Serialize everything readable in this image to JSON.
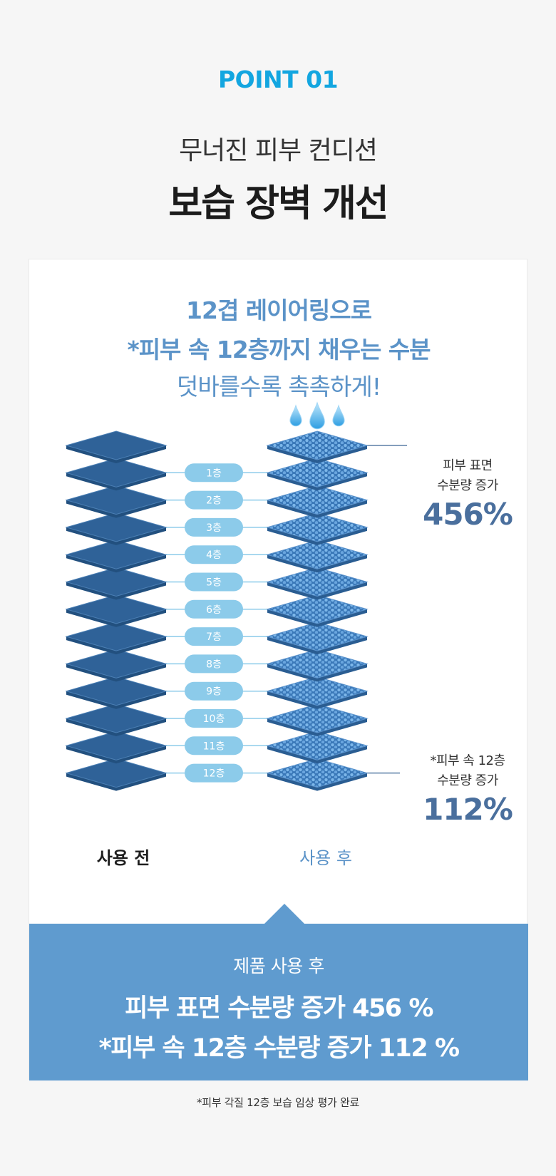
{
  "header": {
    "point_label": "POINT 01",
    "subtitle": "무너진 피부 컨디션",
    "title": "보습 장벽 개선"
  },
  "card": {
    "headline_1": "12겹 레이어링으로",
    "headline_2": "*피부 속 12층까지 채우는 수분",
    "headline_3": "덧바를수록 촉촉하게!",
    "layers": [
      "1층",
      "2층",
      "3층",
      "4층",
      "5층",
      "6층",
      "7층",
      "8층",
      "9층",
      "10층",
      "11층",
      "12층"
    ],
    "before_label": "사용 전",
    "after_label": "사용 후",
    "surface_annotation": {
      "line1": "피부 표면",
      "line2": "수분량 증가",
      "value": "456%"
    },
    "deep_annotation": {
      "line1": "*피부 속 12층",
      "line2": "수분량 증가",
      "value": "112%"
    },
    "colors": {
      "before_layer": "#2f6298",
      "pill": "#8ccbea",
      "accent": "#5b93c8",
      "banner": "#5f9bcf"
    }
  },
  "banner": {
    "caption": "제품 사용 후",
    "line_1": "피부 표면 수분량 증가 456 %",
    "line_2": "*피부 속 12층 수분량 증가 112 %"
  },
  "footnote": "*피부 각질 12층 보습 임상 평가 완료",
  "icons": [
    "water-drop-icon"
  ]
}
